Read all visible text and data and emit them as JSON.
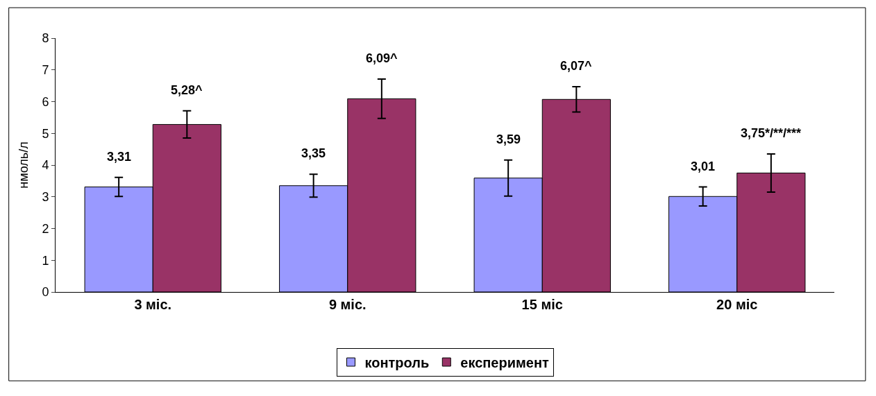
{
  "chart_data": {
    "type": "bar",
    "ylabel": "нмоль/л",
    "categories": [
      "3 міс.",
      "9 міс.",
      "15 міс",
      "20 міс"
    ],
    "series": [
      {
        "name": "контроль",
        "color": "#9999ff",
        "values": [
          3.31,
          3.35,
          3.59,
          3.01
        ],
        "errors": [
          0.3,
          0.36,
          0.57,
          0.3
        ],
        "value_labels": [
          "3,31",
          "3,35",
          "3,59",
          "3,01"
        ]
      },
      {
        "name": "експеримент",
        "color": "#993366",
        "values": [
          5.28,
          6.09,
          6.07,
          3.75
        ],
        "errors": [
          0.43,
          0.62,
          0.4,
          0.6
        ],
        "value_labels": [
          "5,28^",
          "6,09^",
          "6,07^",
          "3,75*/**/***"
        ]
      }
    ],
    "ylim": [
      0,
      8
    ],
    "yticks": [
      0,
      1,
      2,
      3,
      4,
      5,
      6,
      7,
      8
    ],
    "grid": false,
    "legend": "bottom"
  }
}
